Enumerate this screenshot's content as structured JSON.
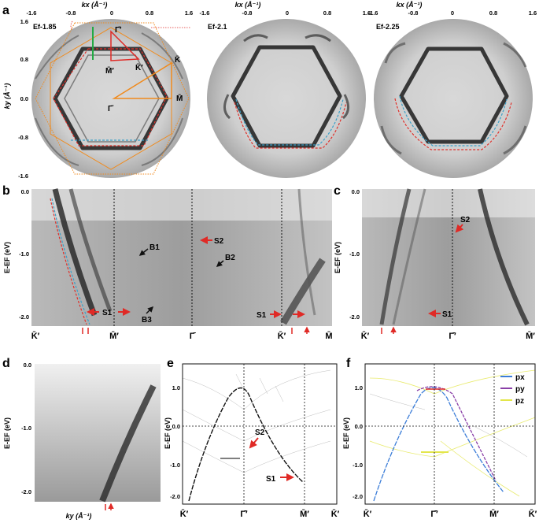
{
  "figure": {
    "panel_labels": [
      "a",
      "b",
      "c",
      "d",
      "e",
      "f"
    ]
  },
  "panel_a": {
    "axis_x_label": "kx (Å⁻¹)",
    "axis_y_label": "ky (Å⁻¹)",
    "x_ticks": [
      "-1.6",
      "-0.8",
      "0",
      "0.8",
      "1.6"
    ],
    "y_ticks": [
      "1.6",
      "0.8",
      "0.0",
      "-0.8",
      "-1.6"
    ],
    "maps": [
      {
        "energy": "Ef-1.85"
      },
      {
        "energy": "Ef-2.1"
      },
      {
        "energy": "Ef-2.25"
      }
    ],
    "bz_points": {
      "gamma_prime": "Γ̄′",
      "m_prime": "M̄′",
      "k_prime": "K̄′",
      "k": "K̄",
      "m": "M̄",
      "gamma": "Γ̄"
    }
  },
  "panel_b": {
    "y_label": "E-EF (eV)",
    "y_ticks": [
      "0.0",
      "-1.0",
      "-2.0"
    ],
    "x_ticks": [
      "K̄′",
      "M̄′",
      "Γ̄",
      "K̄′",
      "M̄"
    ],
    "annotations": [
      "S1",
      "S2",
      "B1",
      "B2",
      "B3",
      "S1"
    ]
  },
  "panel_c": {
    "y_label": "E-EF (eV)",
    "y_ticks": [
      "0.0",
      "-1.0",
      "-2.0"
    ],
    "x_ticks": [
      "K̄′",
      "Γ̄′",
      "M̄′"
    ],
    "annotations": [
      "S2",
      "S1"
    ]
  },
  "panel_d": {
    "y_label": "E-EF (eV)",
    "y_ticks": [
      "0.0",
      "-1.0",
      "-2.0"
    ],
    "x_label": "ky (Å⁻¹)"
  },
  "panel_e": {
    "y_label": "E-EF (eV)",
    "y_ticks": [
      "1.0",
      "0.0",
      "-1.0",
      "-2.0"
    ],
    "x_ticks": [
      "K̄′",
      "Γ̄′",
      "M̄′",
      "K̄′"
    ],
    "annotations": [
      "S2",
      "S1"
    ]
  },
  "panel_f": {
    "y_label": "E-EF (eV)",
    "y_ticks": [
      "1.0",
      "0.0",
      "-1.0",
      "-2.0"
    ],
    "x_ticks": [
      "K̄′",
      "Γ̄′",
      "M̄′",
      "K̄′"
    ],
    "legend": [
      {
        "label": "px",
        "color": "#3b7dd8"
      },
      {
        "label": "py",
        "color": "#8a3fa8"
      },
      {
        "label": "pz",
        "color": "#e3e64a"
      }
    ]
  },
  "colors": {
    "red_dash": "#e0302a",
    "blue_dash": "#3aa0c8",
    "orange": "#f08a1c",
    "arrow_red": "#e02a26",
    "green": "#22aa44"
  }
}
